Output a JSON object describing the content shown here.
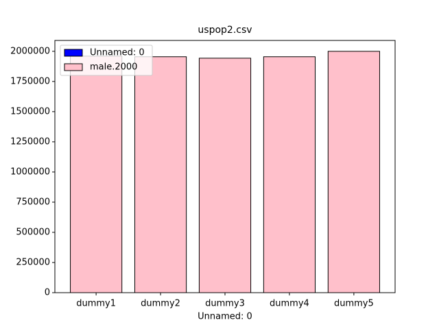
{
  "chart_data": {
    "type": "bar",
    "title": "uspop2.csv",
    "x_label": "Unnamed: 0",
    "categories": [
      "dummy1",
      "dummy2",
      "dummy3",
      "dummy4",
      "dummy5"
    ],
    "series": [
      {
        "name": "Unnamed: 0",
        "color": "#0000ff",
        "values": [
          0,
          1,
          2,
          3,
          4
        ]
      },
      {
        "name": "male.2000",
        "color": "#ffc0cb",
        "values": [
          1960000,
          1955000,
          1943000,
          1955000,
          2000000
        ]
      }
    ],
    "ylim": [
      0,
      2090000
    ],
    "yticks": [
      0,
      250000,
      500000,
      750000,
      1000000,
      1250000,
      1500000,
      1750000,
      2000000
    ],
    "legend": "upper left"
  }
}
